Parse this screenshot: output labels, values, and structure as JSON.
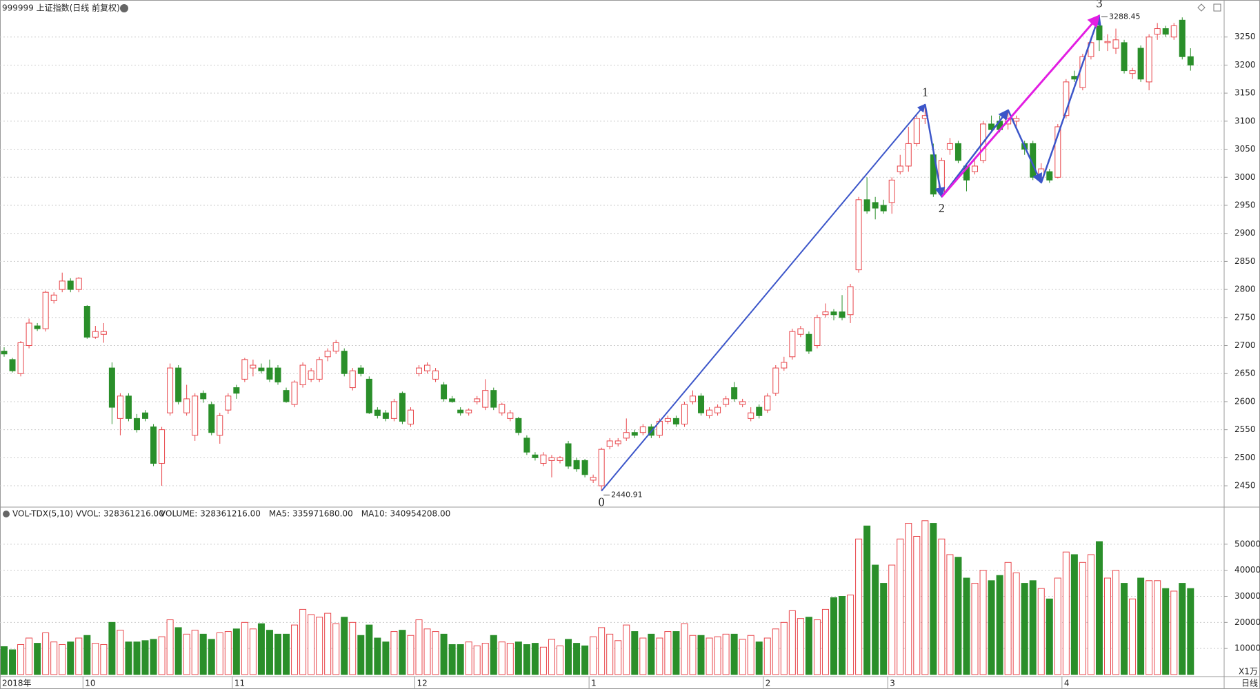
{
  "chart_data": [
    {
      "type": "candlestick",
      "title": "999999 上证指数(日线 前复权)",
      "ohlc": [
        [
          2690,
          2697,
          2680,
          2685
        ],
        [
          2675,
          2678,
          2652,
          2655
        ],
        [
          2650,
          2708,
          2645,
          2705
        ],
        [
          2700,
          2748,
          2695,
          2740
        ],
        [
          2735,
          2740,
          2726,
          2730
        ],
        [
          2730,
          2798,
          2725,
          2795
        ],
        [
          2780,
          2795,
          2775,
          2790
        ],
        [
          2800,
          2830,
          2795,
          2815
        ],
        [
          2815,
          2820,
          2795,
          2800
        ],
        [
          2800,
          2822,
          2795,
          2820
        ],
        [
          2770,
          2772,
          2712,
          2715
        ],
        [
          2715,
          2735,
          2712,
          2725
        ],
        [
          2720,
          2740,
          2705,
          2725
        ],
        [
          2660,
          2670,
          2560,
          2590
        ],
        [
          2570,
          2615,
          2540,
          2610
        ],
        [
          2610,
          2615,
          2565,
          2570
        ],
        [
          2570,
          2578,
          2545,
          2550
        ],
        [
          2580,
          2585,
          2565,
          2570
        ],
        [
          2555,
          2560,
          2485,
          2490
        ],
        [
          2490,
          2555,
          2450,
          2550
        ],
        [
          2580,
          2668,
          2575,
          2660
        ],
        [
          2660,
          2665,
          2595,
          2600
        ],
        [
          2580,
          2630,
          2575,
          2605
        ],
        [
          2540,
          2615,
          2530,
          2610
        ],
        [
          2615,
          2620,
          2598,
          2605
        ],
        [
          2595,
          2600,
          2540,
          2545
        ],
        [
          2540,
          2580,
          2525,
          2575
        ],
        [
          2585,
          2615,
          2578,
          2610
        ],
        [
          2625,
          2630,
          2605,
          2615
        ],
        [
          2640,
          2678,
          2635,
          2675
        ],
        [
          2660,
          2675,
          2645,
          2665
        ],
        [
          2660,
          2668,
          2650,
          2655
        ],
        [
          2660,
          2675,
          2635,
          2640
        ],
        [
          2660,
          2665,
          2630,
          2635
        ],
        [
          2620,
          2625,
          2598,
          2600
        ],
        [
          2595,
          2638,
          2590,
          2635
        ],
        [
          2630,
          2670,
          2625,
          2665
        ],
        [
          2640,
          2660,
          2635,
          2655
        ],
        [
          2640,
          2680,
          2635,
          2675
        ],
        [
          2680,
          2695,
          2672,
          2690
        ],
        [
          2690,
          2710,
          2685,
          2705
        ],
        [
          2690,
          2695,
          2645,
          2650
        ],
        [
          2625,
          2660,
          2620,
          2655
        ],
        [
          2660,
          2665,
          2645,
          2650
        ],
        [
          2640,
          2645,
          2578,
          2580
        ],
        [
          2585,
          2590,
          2570,
          2575
        ],
        [
          2580,
          2585,
          2565,
          2570
        ],
        [
          2570,
          2605,
          2565,
          2600
        ],
        [
          2615,
          2618,
          2560,
          2565
        ],
        [
          2560,
          2590,
          2555,
          2585
        ],
        [
          2650,
          2665,
          2645,
          2660
        ],
        [
          2655,
          2670,
          2650,
          2665
        ],
        [
          2640,
          2660,
          2635,
          2655
        ],
        [
          2630,
          2635,
          2600,
          2605
        ],
        [
          2605,
          2610,
          2598,
          2600
        ],
        [
          2585,
          2590,
          2575,
          2580
        ],
        [
          2580,
          2588,
          2575,
          2585
        ],
        [
          2600,
          2610,
          2595,
          2605
        ],
        [
          2590,
          2640,
          2585,
          2620
        ],
        [
          2620,
          2625,
          2585,
          2590
        ],
        [
          2580,
          2598,
          2575,
          2595
        ],
        [
          2570,
          2585,
          2565,
          2580
        ],
        [
          2570,
          2573,
          2540,
          2545
        ],
        [
          2535,
          2540,
          2505,
          2510
        ],
        [
          2505,
          2510,
          2495,
          2500
        ],
        [
          2490,
          2510,
          2485,
          2505
        ],
        [
          2495,
          2505,
          2465,
          2500
        ],
        [
          2495,
          2503,
          2490,
          2500
        ],
        [
          2525,
          2530,
          2480,
          2485
        ],
        [
          2495,
          2500,
          2475,
          2480
        ],
        [
          2495,
          2498,
          2465,
          2470
        ],
        [
          2460,
          2470,
          2455,
          2465
        ],
        [
          2450,
          2518,
          2440.91,
          2515
        ],
        [
          2520,
          2535,
          2515,
          2530
        ],
        [
          2525,
          2535,
          2520,
          2530
        ],
        [
          2535,
          2570,
          2530,
          2545
        ],
        [
          2545,
          2550,
          2535,
          2540
        ],
        [
          2545,
          2560,
          2540,
          2555
        ],
        [
          2555,
          2560,
          2535,
          2540
        ],
        [
          2540,
          2570,
          2535,
          2565
        ],
        [
          2565,
          2575,
          2560,
          2570
        ],
        [
          2570,
          2575,
          2555,
          2560
        ],
        [
          2560,
          2600,
          2555,
          2595
        ],
        [
          2600,
          2620,
          2595,
          2610
        ],
        [
          2610,
          2615,
          2575,
          2580
        ],
        [
          2575,
          2590,
          2570,
          2585
        ],
        [
          2580,
          2595,
          2575,
          2590
        ],
        [
          2595,
          2610,
          2590,
          2605
        ],
        [
          2625,
          2635,
          2600,
          2605
        ],
        [
          2595,
          2605,
          2590,
          2600
        ],
        [
          2570,
          2590,
          2565,
          2580
        ],
        [
          2590,
          2595,
          2570,
          2575
        ],
        [
          2585,
          2615,
          2580,
          2610
        ],
        [
          2615,
          2665,
          2610,
          2660
        ],
        [
          2660,
          2680,
          2655,
          2670
        ],
        [
          2680,
          2730,
          2675,
          2725
        ],
        [
          2720,
          2735,
          2715,
          2730
        ],
        [
          2720,
          2725,
          2685,
          2690
        ],
        [
          2700,
          2755,
          2695,
          2750
        ],
        [
          2755,
          2775,
          2750,
          2760
        ],
        [
          2760,
          2765,
          2745,
          2755
        ],
        [
          2760,
          2790,
          2745,
          2750
        ],
        [
          2755,
          2810,
          2740,
          2805
        ],
        [
          2835,
          2965,
          2830,
          2960
        ],
        [
          2960,
          3000,
          2935,
          2940
        ],
        [
          2955,
          2965,
          2925,
          2945
        ],
        [
          2950,
          2960,
          2935,
          2940
        ],
        [
          2955,
          3000,
          2935,
          2995
        ],
        [
          3010,
          3040,
          3005,
          3020
        ],
        [
          3020,
          3090,
          3010,
          3060
        ],
        [
          3060,
          3110,
          3055,
          3105
        ],
        [
          3105,
          3130,
          3095,
          3110
        ],
        [
          3040,
          3060,
          2965,
          2970
        ],
        [
          2970,
          3035,
          2965,
          3030
        ],
        [
          3050,
          3070,
          3040,
          3060
        ],
        [
          3060,
          3065,
          3025,
          3030
        ],
        [
          3020,
          3025,
          2975,
          2995
        ],
        [
          3010,
          3030,
          3005,
          3020
        ],
        [
          3030,
          3100,
          3025,
          3095
        ],
        [
          3095,
          3110,
          3080,
          3085
        ],
        [
          3100,
          3110,
          3080,
          3085
        ],
        [
          3095,
          3120,
          3085,
          3105
        ],
        [
          3100,
          3110,
          3090,
          3105
        ],
        [
          3060,
          3065,
          3040,
          3050
        ],
        [
          3060,
          3065,
          2995,
          3000
        ],
        [
          3000,
          3025,
          2990,
          3015
        ],
        [
          3010,
          3015,
          2990,
          2995
        ],
        [
          3000,
          3095,
          2998,
          3090
        ],
        [
          3110,
          3175,
          3105,
          3170
        ],
        [
          3180,
          3190,
          3170,
          3175
        ],
        [
          3160,
          3220,
          3155,
          3215
        ],
        [
          3215,
          3245,
          3210,
          3240
        ],
        [
          3270,
          3288.45,
          3225,
          3245
        ],
        [
          3240,
          3255,
          3225,
          3242
        ],
        [
          3230,
          3265,
          3220,
          3245
        ],
        [
          3240,
          3245,
          3185,
          3190
        ],
        [
          3185,
          3195,
          3175,
          3190
        ],
        [
          3230,
          3235,
          3170,
          3175
        ],
        [
          3170,
          3255,
          3155,
          3250
        ],
        [
          3255,
          3275,
          3245,
          3265
        ],
        [
          3265,
          3270,
          3250,
          3255
        ],
        [
          3250,
          3275,
          3245,
          3270
        ],
        [
          3280,
          3285,
          3210,
          3215
        ],
        [
          3215,
          3230,
          3190,
          3200
        ]
      ],
      "up_color": "#e8454a",
      "down_color": "#2a8f2a",
      "ylim": [
        2412,
        3316
      ],
      "yticks": [
        2450,
        2500,
        2550,
        2600,
        2650,
        2700,
        2750,
        2800,
        2850,
        2900,
        2950,
        3000,
        3050,
        3100,
        3150,
        3200,
        3250
      ],
      "grid": true,
      "wave_labels": [
        "0",
        "1",
        "2",
        "3"
      ],
      "extreme_labels": [
        2440.91,
        3288.45
      ],
      "wave_color": "#3b55c9",
      "trend_color": "#e21ee2"
    },
    {
      "type": "bar",
      "title": "VOL-TDX(5,10) VVOL: 328361216.00",
      "indicators": [
        {
          "name": "VOLUME: 328361216.00",
          "color": "#1e7fd0"
        },
        {
          "name": "MA5: 335971680.00",
          "color": "#1e7fd0"
        },
        {
          "name": "MA10: 340954208.00",
          "color": "#a0209f"
        }
      ],
      "categories": [
        "2018年",
        null,
        null,
        null,
        null,
        null,
        null,
        null,
        null,
        null,
        "10",
        null,
        null,
        null,
        null,
        null,
        null,
        null,
        null,
        null,
        null,
        null,
        null,
        null,
        null,
        null,
        null,
        null,
        "11",
        null,
        null,
        null,
        null,
        null,
        null,
        null,
        null,
        null,
        null,
        null,
        null,
        null,
        null,
        null,
        null,
        null,
        null,
        null,
        null,
        null,
        "12",
        null,
        null,
        null,
        null,
        null,
        null,
        null,
        null,
        null,
        null,
        null,
        null,
        null,
        null,
        null,
        null,
        null,
        null,
        null,
        null,
        "1",
        null,
        null,
        null,
        null,
        null,
        null,
        null,
        null,
        null,
        null,
        null,
        null,
        null,
        null,
        null,
        null,
        null,
        null,
        null,
        null,
        "2",
        null,
        null,
        null,
        null,
        null,
        null,
        null,
        null,
        null,
        null,
        null,
        null,
        null,
        null,
        "3",
        null,
        null,
        null,
        null,
        null,
        null,
        null,
        null,
        null,
        null,
        null,
        null,
        null,
        null,
        null,
        null,
        null,
        null,
        null,
        null,
        "4",
        null,
        null,
        null,
        null,
        null,
        null,
        null,
        null,
        null,
        null,
        null,
        null,
        null,
        null,
        null
      ],
      "values": [
        10700,
        9500,
        11500,
        14000,
        12000,
        16000,
        12500,
        11500,
        12500,
        14000,
        15000,
        12000,
        11500,
        20000,
        17000,
        12500,
        12500,
        13000,
        13500,
        14500,
        21000,
        18000,
        15500,
        17000,
        15500,
        13500,
        16000,
        16500,
        17500,
        20000,
        17500,
        19500,
        17000,
        15500,
        15500,
        19000,
        25000,
        23000,
        22000,
        23500,
        19500,
        22000,
        20000,
        15000,
        19000,
        14000,
        12500,
        16500,
        17000,
        15000,
        21000,
        17500,
        16500,
        15500,
        11500,
        11500,
        12500,
        11000,
        12000,
        15000,
        12500,
        12000,
        12500,
        11500,
        12000,
        10500,
        13500,
        11000,
        13500,
        12000,
        11000,
        14500,
        18000,
        15500,
        13000,
        19000,
        16500,
        14000,
        15500,
        14000,
        16500,
        16500,
        19500,
        15000,
        15000,
        14000,
        14500,
        15500,
        15500,
        13500,
        15000,
        12500,
        14000,
        17500,
        20000,
        24500,
        21500,
        22000,
        21000,
        25000,
        29500,
        30000,
        30500,
        52000,
        57000,
        42000,
        35000,
        42000,
        52000,
        58000,
        53000,
        59000,
        58000,
        52000,
        46000,
        45000,
        37000,
        35000,
        40000,
        36000,
        38000,
        43000,
        39000,
        35000,
        36000,
        33000,
        29000,
        37000,
        47000,
        46000,
        43000,
        46000,
        51000,
        37000,
        40000,
        35000,
        29000,
        37000,
        36000,
        36000,
        33000,
        32000,
        35000,
        33000
      ],
      "ylim": [
        0,
        60000
      ],
      "yticks": [
        10000,
        20000,
        30000,
        40000,
        50000
      ],
      "unit": "X1万",
      "period": "日线"
    }
  ]
}
